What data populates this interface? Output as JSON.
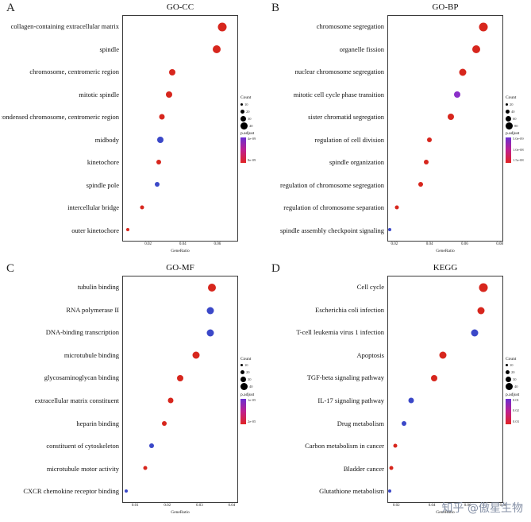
{
  "page": {
    "watermark": "知乎 @傲星生物"
  },
  "chart_data": [
    {
      "type": "scatter",
      "panel_label": "A",
      "title": "GO-CC",
      "xlabel": "GeneRatio",
      "xlim": [
        0.005,
        0.072
      ],
      "xticks": [
        "0.02",
        "0.04",
        "0.06"
      ],
      "categories": [
        "collagen-containing extracellular matrix",
        "spindle",
        "chromosome, centromeric region",
        "mitotic spindle",
        "condensed chromosome, centromeric region",
        "midbody",
        "kinetochore",
        "spindle pole",
        "intercellular bridge",
        "outer kinetochore"
      ],
      "points": [
        {
          "gene_ratio": 0.063,
          "size": 11,
          "color": "#d7261d"
        },
        {
          "gene_ratio": 0.06,
          "size": 10,
          "color": "#d7261d"
        },
        {
          "gene_ratio": 0.034,
          "size": 8,
          "color": "#d7261d"
        },
        {
          "gene_ratio": 0.032,
          "size": 8,
          "color": "#d7261d"
        },
        {
          "gene_ratio": 0.028,
          "size": 7,
          "color": "#d7261d"
        },
        {
          "gene_ratio": 0.027,
          "size": 8,
          "color": "#3b48c8"
        },
        {
          "gene_ratio": 0.026,
          "size": 6,
          "color": "#d7261d"
        },
        {
          "gene_ratio": 0.025,
          "size": 6,
          "color": "#3b48c8"
        },
        {
          "gene_ratio": 0.016,
          "size": 5,
          "color": "#d7261d"
        },
        {
          "gene_ratio": 0.008,
          "size": 4,
          "color": "#d7261d"
        }
      ],
      "legend": {
        "count_title": "Count",
        "count_items": [
          {
            "label": "10",
            "size": 3
          },
          {
            "label": "20",
            "size": 5
          },
          {
            "label": "30",
            "size": 7
          },
          {
            "label": "40",
            "size": 9
          }
        ],
        "padjust_title": "p.adjust",
        "padjust_labels": [
          "4e-09",
          "8e-09"
        ]
      }
    },
    {
      "type": "scatter",
      "panel_label": "B",
      "title": "GO-BP",
      "xlabel": "GeneRatio",
      "xlim": [
        0.016,
        0.082
      ],
      "xticks": [
        "0.02",
        "0.04",
        "0.06",
        "0.08"
      ],
      "categories": [
        "chromosome segregation",
        "organelle fission",
        "nuclear chromosome segregation",
        "mitotic cell cycle phase transition",
        "sister chromatid segregation",
        "regulation of cell division",
        "spindle organization",
        "regulation of chromosome segregation",
        "regulation of chromosome separation",
        "spindle assembly checkpoint signaling"
      ],
      "points": [
        {
          "gene_ratio": 0.071,
          "size": 11,
          "color": "#d7261d"
        },
        {
          "gene_ratio": 0.067,
          "size": 10,
          "color": "#d7261d"
        },
        {
          "gene_ratio": 0.059,
          "size": 9,
          "color": "#d7261d"
        },
        {
          "gene_ratio": 0.056,
          "size": 8,
          "color": "#8b2fc9"
        },
        {
          "gene_ratio": 0.052,
          "size": 8,
          "color": "#d7261d"
        },
        {
          "gene_ratio": 0.04,
          "size": 6,
          "color": "#d7261d"
        },
        {
          "gene_ratio": 0.038,
          "size": 6,
          "color": "#d7261d"
        },
        {
          "gene_ratio": 0.035,
          "size": 6,
          "color": "#d7261d"
        },
        {
          "gene_ratio": 0.021,
          "size": 5,
          "color": "#d7261d"
        },
        {
          "gene_ratio": 0.017,
          "size": 4,
          "color": "#3b48c8"
        }
      ],
      "legend": {
        "count_title": "Count",
        "count_items": [
          {
            "label": "20",
            "size": 3
          },
          {
            "label": "40",
            "size": 5
          },
          {
            "label": "60",
            "size": 7
          },
          {
            "label": "80",
            "size": 9
          }
        ],
        "padjust_title": "p.adjust",
        "padjust_labels": [
          "5.0e-09",
          "1.0e-08",
          "1.5e-08"
        ]
      }
    },
    {
      "type": "scatter",
      "panel_label": "C",
      "title": "GO-MF",
      "xlabel": "GeneRatio",
      "xlim": [
        0.006,
        0.042
      ],
      "xticks": [
        "0.01",
        "0.02",
        "0.03",
        "0.04"
      ],
      "categories": [
        "tubulin binding",
        "RNA polymerase II",
        "DNA-binding transcription",
        "microtubule binding",
        "glycosaminoglycan binding",
        "extracellular matrix constituent",
        "heparin binding",
        "constituent of cytoskeleton",
        "microtubule motor activity",
        "CXCR chemokine receptor binding"
      ],
      "points": [
        {
          "gene_ratio": 0.034,
          "size": 10,
          "color": "#d7261d"
        },
        {
          "gene_ratio": 0.0335,
          "size": 9,
          "color": "#3b48c8"
        },
        {
          "gene_ratio": 0.0335,
          "size": 9,
          "color": "#3b48c8"
        },
        {
          "gene_ratio": 0.029,
          "size": 9,
          "color": "#d7261d"
        },
        {
          "gene_ratio": 0.024,
          "size": 8,
          "color": "#d7261d"
        },
        {
          "gene_ratio": 0.021,
          "size": 7,
          "color": "#d7261d"
        },
        {
          "gene_ratio": 0.019,
          "size": 6,
          "color": "#d7261d"
        },
        {
          "gene_ratio": 0.015,
          "size": 6,
          "color": "#3b48c8"
        },
        {
          "gene_ratio": 0.013,
          "size": 5,
          "color": "#d7261d"
        },
        {
          "gene_ratio": 0.007,
          "size": 4,
          "color": "#3b48c8"
        }
      ],
      "legend": {
        "count_title": "Count",
        "count_items": [
          {
            "label": "10",
            "size": 3
          },
          {
            "label": "20",
            "size": 5
          },
          {
            "label": "30",
            "size": 7
          },
          {
            "label": "40",
            "size": 9
          }
        ],
        "padjust_title": "p.adjust",
        "padjust_labels": [
          "1e-05",
          "2e-05"
        ]
      }
    },
    {
      "type": "scatter",
      "panel_label": "D",
      "title": "KEGG",
      "xlabel": "GeneRatio",
      "xlim": [
        0.015,
        0.08
      ],
      "xticks": [
        "0.02",
        "0.04",
        "0.06",
        "0.08"
      ],
      "categories": [
        "Cell cycle",
        "Escherichia coli infection",
        "T-cell leukemia virus 1 infection",
        "Apoptosis",
        "TGF-beta signaling pathway",
        "IL-17 signaling pathway",
        "Drug metabolism",
        "Carbon metabolism in cancer",
        "Bladder cancer",
        "Glutathione metabolism"
      ],
      "points": [
        {
          "gene_ratio": 0.069,
          "size": 11,
          "color": "#d7261d"
        },
        {
          "gene_ratio": 0.068,
          "size": 9,
          "color": "#d7261d"
        },
        {
          "gene_ratio": 0.064,
          "size": 9,
          "color": "#3b48c8"
        },
        {
          "gene_ratio": 0.046,
          "size": 9,
          "color": "#d7261d"
        },
        {
          "gene_ratio": 0.041,
          "size": 8,
          "color": "#d7261d"
        },
        {
          "gene_ratio": 0.028,
          "size": 7,
          "color": "#3b48c8"
        },
        {
          "gene_ratio": 0.024,
          "size": 6,
          "color": "#3b48c8"
        },
        {
          "gene_ratio": 0.019,
          "size": 5,
          "color": "#d7261d"
        },
        {
          "gene_ratio": 0.017,
          "size": 5,
          "color": "#d7261d"
        },
        {
          "gene_ratio": 0.016,
          "size": 4,
          "color": "#3b48c8"
        }
      ],
      "legend": {
        "count_title": "Count",
        "count_items": [
          {
            "label": "10",
            "size": 3
          },
          {
            "label": "20",
            "size": 5
          },
          {
            "label": "30",
            "size": 7
          },
          {
            "label": "40",
            "size": 9
          }
        ],
        "padjust_title": "p.adjust",
        "padjust_labels": [
          "0.01",
          "0.02",
          "0.03"
        ]
      }
    }
  ]
}
